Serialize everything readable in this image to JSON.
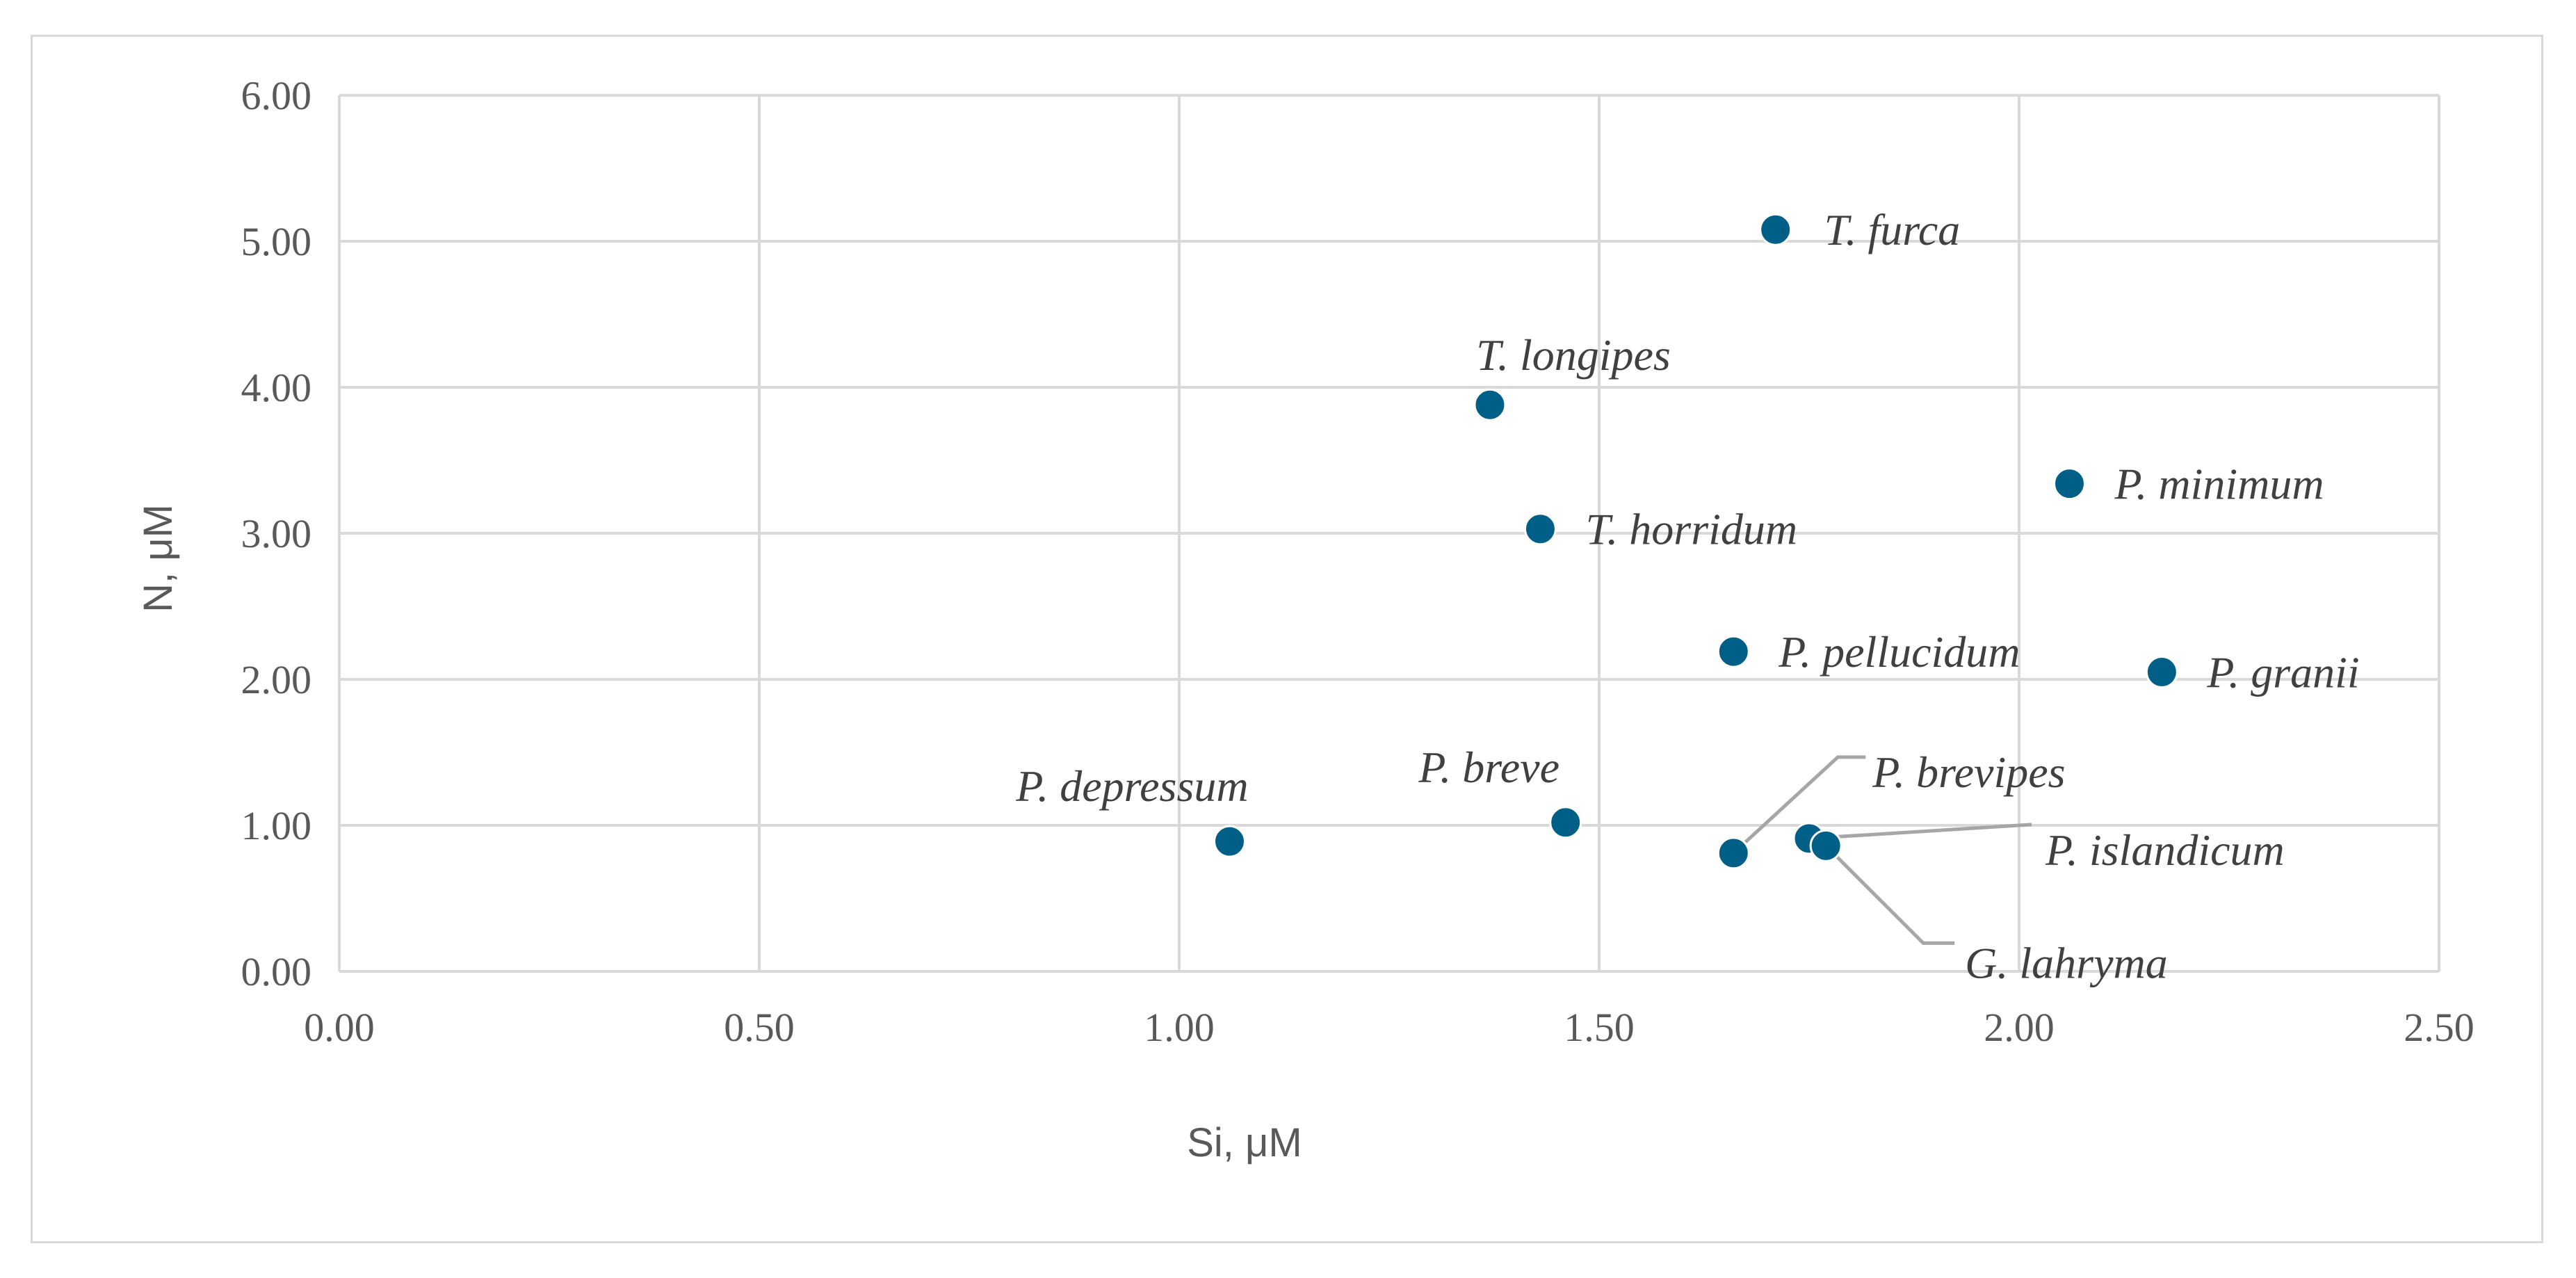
{
  "chart_data": {
    "type": "scatter",
    "xlabel": "Si, μM",
    "ylabel": "N, μM",
    "xlim": [
      0,
      2.5
    ],
    "ylim": [
      0,
      6
    ],
    "grid": true,
    "x_ticks": [
      "0.00",
      "0.50",
      "1.00",
      "1.50",
      "2.00",
      "2.50"
    ],
    "y_ticks": [
      "0.00",
      "1.00",
      "2.00",
      "3.00",
      "4.00",
      "5.00",
      "6.00"
    ],
    "marker_color": "#005f86",
    "points": [
      {
        "label": "T. furca",
        "x": 1.71,
        "y": 5.08
      },
      {
        "label": "T. longipes",
        "x": 1.37,
        "y": 3.88
      },
      {
        "label": "T. horridum",
        "x": 1.43,
        "y": 3.03
      },
      {
        "label": "P. minimum",
        "x": 2.06,
        "y": 3.34
      },
      {
        "label": "P. pellucidum",
        "x": 1.66,
        "y": 2.19
      },
      {
        "label": "P. granii",
        "x": 2.17,
        "y": 2.05
      },
      {
        "label": "P. depressum",
        "x": 1.06,
        "y": 0.89
      },
      {
        "label": "P. breve",
        "x": 1.46,
        "y": 1.02
      },
      {
        "label": "P. brevipes",
        "x": 1.66,
        "y": 0.81
      },
      {
        "label": "P. islandicum",
        "x": 1.75,
        "y": 0.91
      },
      {
        "label": "G. lahryma",
        "x": 1.77,
        "y": 0.86
      }
    ]
  }
}
